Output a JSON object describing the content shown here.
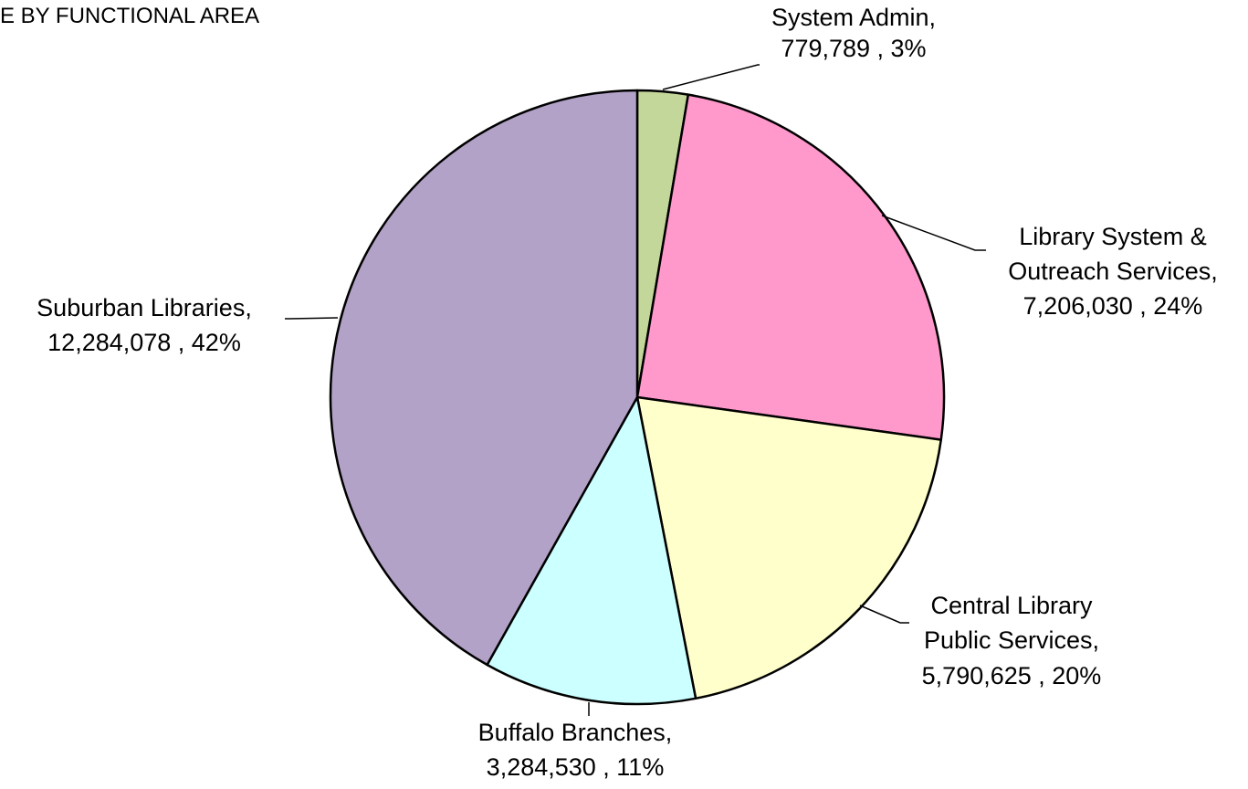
{
  "chart_data": {
    "type": "pie",
    "title": "E BY FUNCTIONAL  AREA",
    "slices": [
      {
        "label_lines": [
          "System Admin,",
          "779,789 , 3%"
        ],
        "value": 779789,
        "percent": 3,
        "color": "#c4d79b"
      },
      {
        "label_lines": [
          "Library System &",
          "Outreach Services,",
          "7,206,030 , 24%"
        ],
        "value": 7206030,
        "percent": 24,
        "color": "#ff99cc"
      },
      {
        "label_lines": [
          "Central Library",
          "Public Services,",
          "5,790,625 , 20%"
        ],
        "value": 5790625,
        "percent": 20,
        "color": "#ffffcc"
      },
      {
        "label_lines": [
          "Buffalo Branches,",
          "3,284,530 , 11%"
        ],
        "value": 3284530,
        "percent": 11,
        "color": "#ccffff"
      },
      {
        "label_lines": [
          "Suburban Libraries,",
          "12,284,078 , 42%"
        ],
        "value": 12284078,
        "percent": 42,
        "color": "#b3a2c7"
      }
    ],
    "legend": "none",
    "start_angle": "12 o'clock",
    "direction": "clockwise"
  }
}
